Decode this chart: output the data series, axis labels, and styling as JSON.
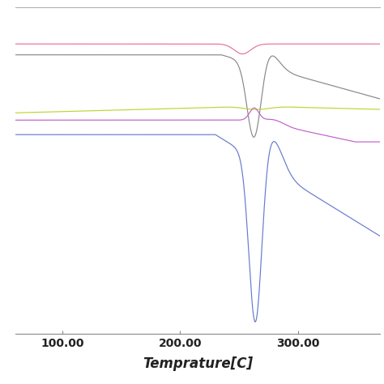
{
  "title": "",
  "xlabel": "Temprature[C]",
  "xlim": [
    60,
    370
  ],
  "ylim": [
    -0.72,
    1.08
  ],
  "xticks": [
    100.0,
    200.0,
    300.0
  ],
  "xtick_labels": [
    "100.00",
    "200.00",
    "300.00"
  ],
  "background_color": "#ffffff",
  "line_colors": {
    "pink": "#e8709a",
    "gray": "#888888",
    "lime": "#b8d830",
    "purple": "#c060c8",
    "blue": "#6878d0"
  },
  "baselines": {
    "pink": 0.88,
    "gray": 0.82,
    "lime": 0.5,
    "purple": 0.46,
    "blue": 0.38
  },
  "xlabel_fontsize": 12,
  "tick_fontsize": 10
}
